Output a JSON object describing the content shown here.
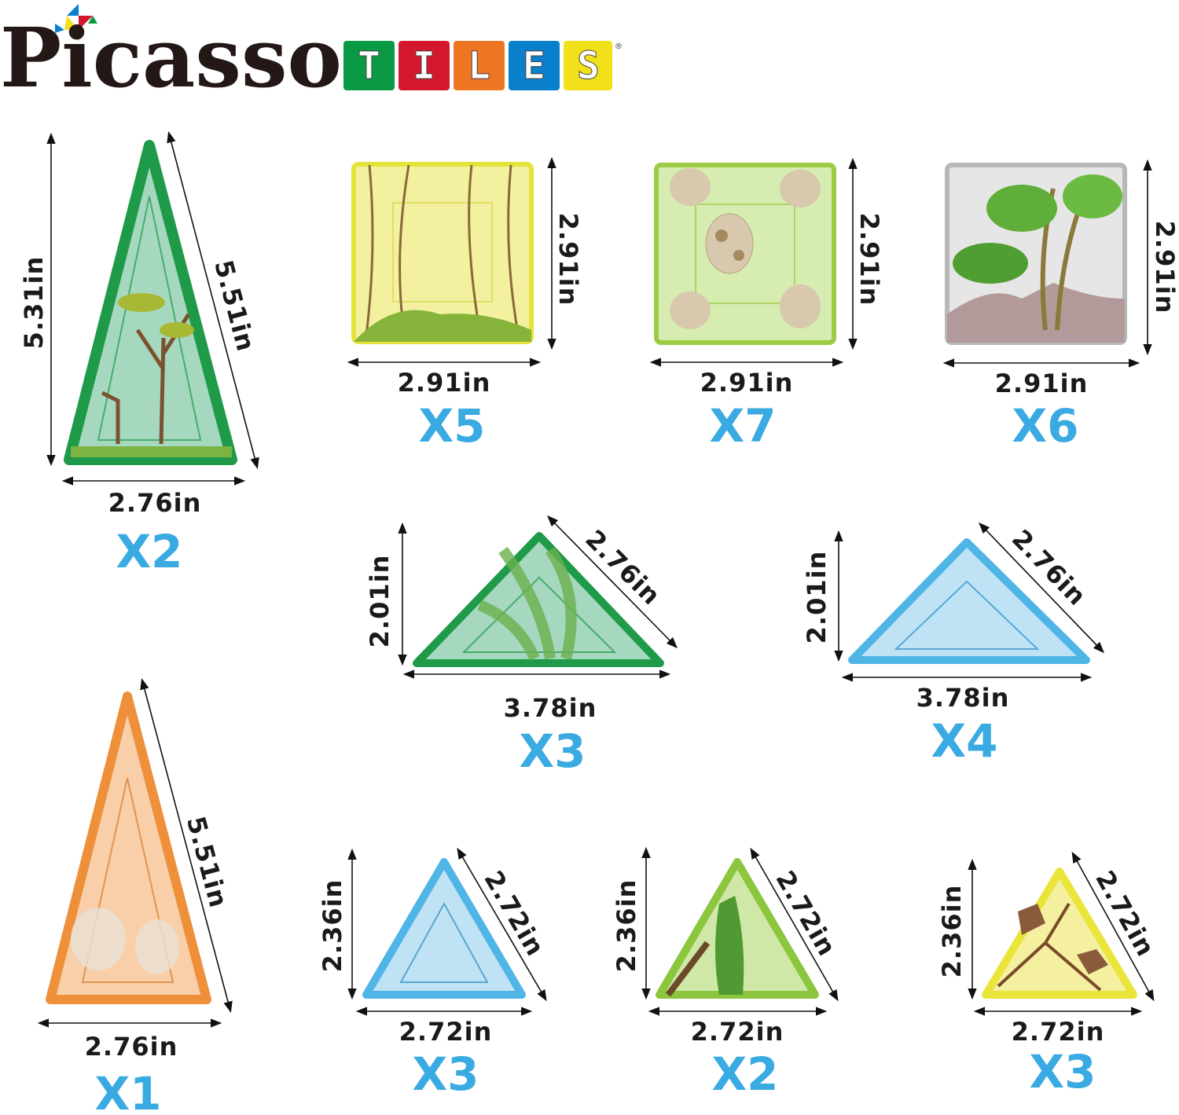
{
  "logo": {
    "brand": "Picasso",
    "tiles_letters": [
      "T",
      "I",
      "L",
      "E",
      "S"
    ],
    "tiles_colors": [
      "#0b9a44",
      "#d4172d",
      "#ee7623",
      "#0a7fcc",
      "#f2e11a"
    ],
    "registered": "®"
  },
  "count_color": "#3aaae2",
  "tiles": [
    {
      "shape": "tall-triangle",
      "theme": "forest tree",
      "color": "#1f9a48",
      "height": "5.31in",
      "side": "5.51in",
      "base": "2.76in",
      "count": "X2"
    },
    {
      "shape": "square",
      "theme": "jungle vines",
      "color": "#e6e84a",
      "side": "2.91in",
      "base": "2.91in",
      "count": "X5"
    },
    {
      "shape": "square",
      "theme": "dinosaur eggs",
      "color": "#9ccc45",
      "side": "2.91in",
      "base": "2.91in",
      "count": "X7"
    },
    {
      "shape": "square",
      "theme": "palm tree volcano",
      "color": "#b8b8b8",
      "side": "2.91in",
      "base": "2.91in",
      "count": "X6"
    },
    {
      "shape": "right-triangle",
      "theme": "leaves",
      "color": "#1f9a48",
      "height": "2.01in",
      "side": "2.76in",
      "base": "3.78in",
      "count": "X3"
    },
    {
      "shape": "right-triangle",
      "theme": "water",
      "color": "#4fb4e6",
      "height": "2.01in",
      "side": "2.76in",
      "base": "3.78in",
      "count": "X4"
    },
    {
      "shape": "tall-triangle",
      "theme": "dust",
      "color": "#ee8f3a",
      "side": "5.51in",
      "base": "2.76in",
      "count": "X1"
    },
    {
      "shape": "equilateral-triangle",
      "theme": "water",
      "color": "#4fb4e6",
      "height": "2.36in",
      "side": "2.72in",
      "base": "2.72in",
      "count": "X3"
    },
    {
      "shape": "equilateral-triangle",
      "theme": "trees",
      "color": "#8cc63f",
      "height": "2.36in",
      "side": "2.72in",
      "base": "2.72in",
      "count": "X2"
    },
    {
      "shape": "equilateral-triangle",
      "theme": "rocks",
      "color": "#e9e53a",
      "height": "2.36in",
      "side": "2.72in",
      "base": "2.72in",
      "count": "X3"
    }
  ]
}
